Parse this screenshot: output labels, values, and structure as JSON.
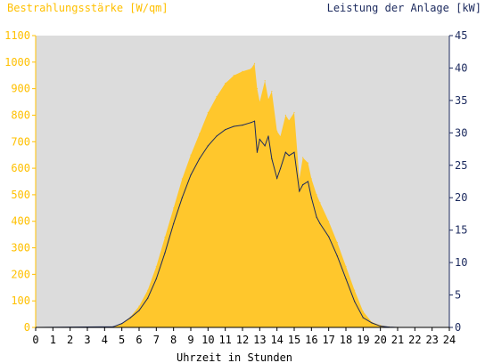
{
  "chart_data": {
    "type": "area",
    "title_left": "Bestrahlungsstärke [W/qm]",
    "title_right": "Leistung der Anlage [kW]",
    "xlabel": "Uhrzeit in Stunden",
    "xlim": [
      0,
      24
    ],
    "x_ticks": [
      "0",
      "1",
      "2",
      "3",
      "4",
      "5",
      "6",
      "7",
      "8",
      "9",
      "10",
      "11",
      "12",
      "13",
      "14",
      "15",
      "16",
      "17",
      "18",
      "19",
      "20",
      "21",
      "22",
      "23",
      "24"
    ],
    "y_left": {
      "range": [
        0,
        1100
      ],
      "ticks": [
        "0",
        "100",
        "200",
        "300",
        "400",
        "500",
        "600",
        "700",
        "800",
        "900",
        "1000",
        "1100"
      ],
      "color": "#ffc000"
    },
    "y_right": {
      "range": [
        0,
        45
      ],
      "ticks": [
        "0",
        "5",
        "10",
        "15",
        "20",
        "25",
        "30",
        "35",
        "40",
        "45"
      ],
      "color": "#1c2a5e"
    },
    "colors": {
      "plot_background": "#dcdcdc",
      "irradiance_fill": "#ffc72c",
      "power_line": "#1c2a5e"
    },
    "series": [
      {
        "axis": "left",
        "style": "area",
        "x": [
          0,
          4.5,
          5,
          5.5,
          6,
          6.5,
          7,
          7.5,
          8,
          8.5,
          9,
          9.5,
          10,
          10.5,
          11,
          11.5,
          12,
          12.5,
          12.7,
          12.85,
          13,
          13.3,
          13.5,
          13.7,
          14,
          14.2,
          14.5,
          14.7,
          15,
          15.3,
          15.5,
          15.8,
          16,
          16.3,
          16.5,
          17,
          17.5,
          18,
          18.5,
          19,
          19.5,
          20,
          20.5,
          21,
          24
        ],
        "y": [
          0,
          2,
          15,
          40,
          80,
          140,
          230,
          340,
          450,
          560,
          650,
          730,
          810,
          870,
          920,
          950,
          965,
          975,
          995,
          900,
          850,
          930,
          860,
          890,
          740,
          720,
          800,
          780,
          810,
          560,
          640,
          620,
          560,
          500,
          470,
          400,
          320,
          230,
          140,
          60,
          20,
          8,
          2,
          0,
          0
        ]
      },
      {
        "axis": "right",
        "style": "line",
        "x": [
          0,
          4.5,
          5,
          5.5,
          6,
          6.5,
          7,
          7.5,
          8,
          8.5,
          9,
          9.5,
          10,
          10.5,
          11,
          11.5,
          12,
          12.5,
          12.7,
          12.85,
          13,
          13.3,
          13.5,
          13.7,
          14,
          14.2,
          14.5,
          14.7,
          15,
          15.3,
          15.5,
          15.8,
          16,
          16.3,
          16.5,
          17,
          17.5,
          18,
          18.5,
          19,
          19.5,
          20,
          20.5,
          21,
          24
        ],
        "y": [
          0,
          0.1,
          0.6,
          1.5,
          2.6,
          4.5,
          7.5,
          11.5,
          16,
          20,
          23.5,
          26,
          28,
          29.5,
          30.5,
          31,
          31.2,
          31.6,
          31.8,
          27,
          29,
          28,
          29.5,
          26,
          23,
          24.5,
          27,
          26.5,
          27,
          21,
          22,
          22.5,
          20,
          17,
          16,
          14,
          11,
          7.5,
          4,
          1.5,
          0.7,
          0.2,
          0.05,
          0,
          0
        ]
      }
    ]
  }
}
